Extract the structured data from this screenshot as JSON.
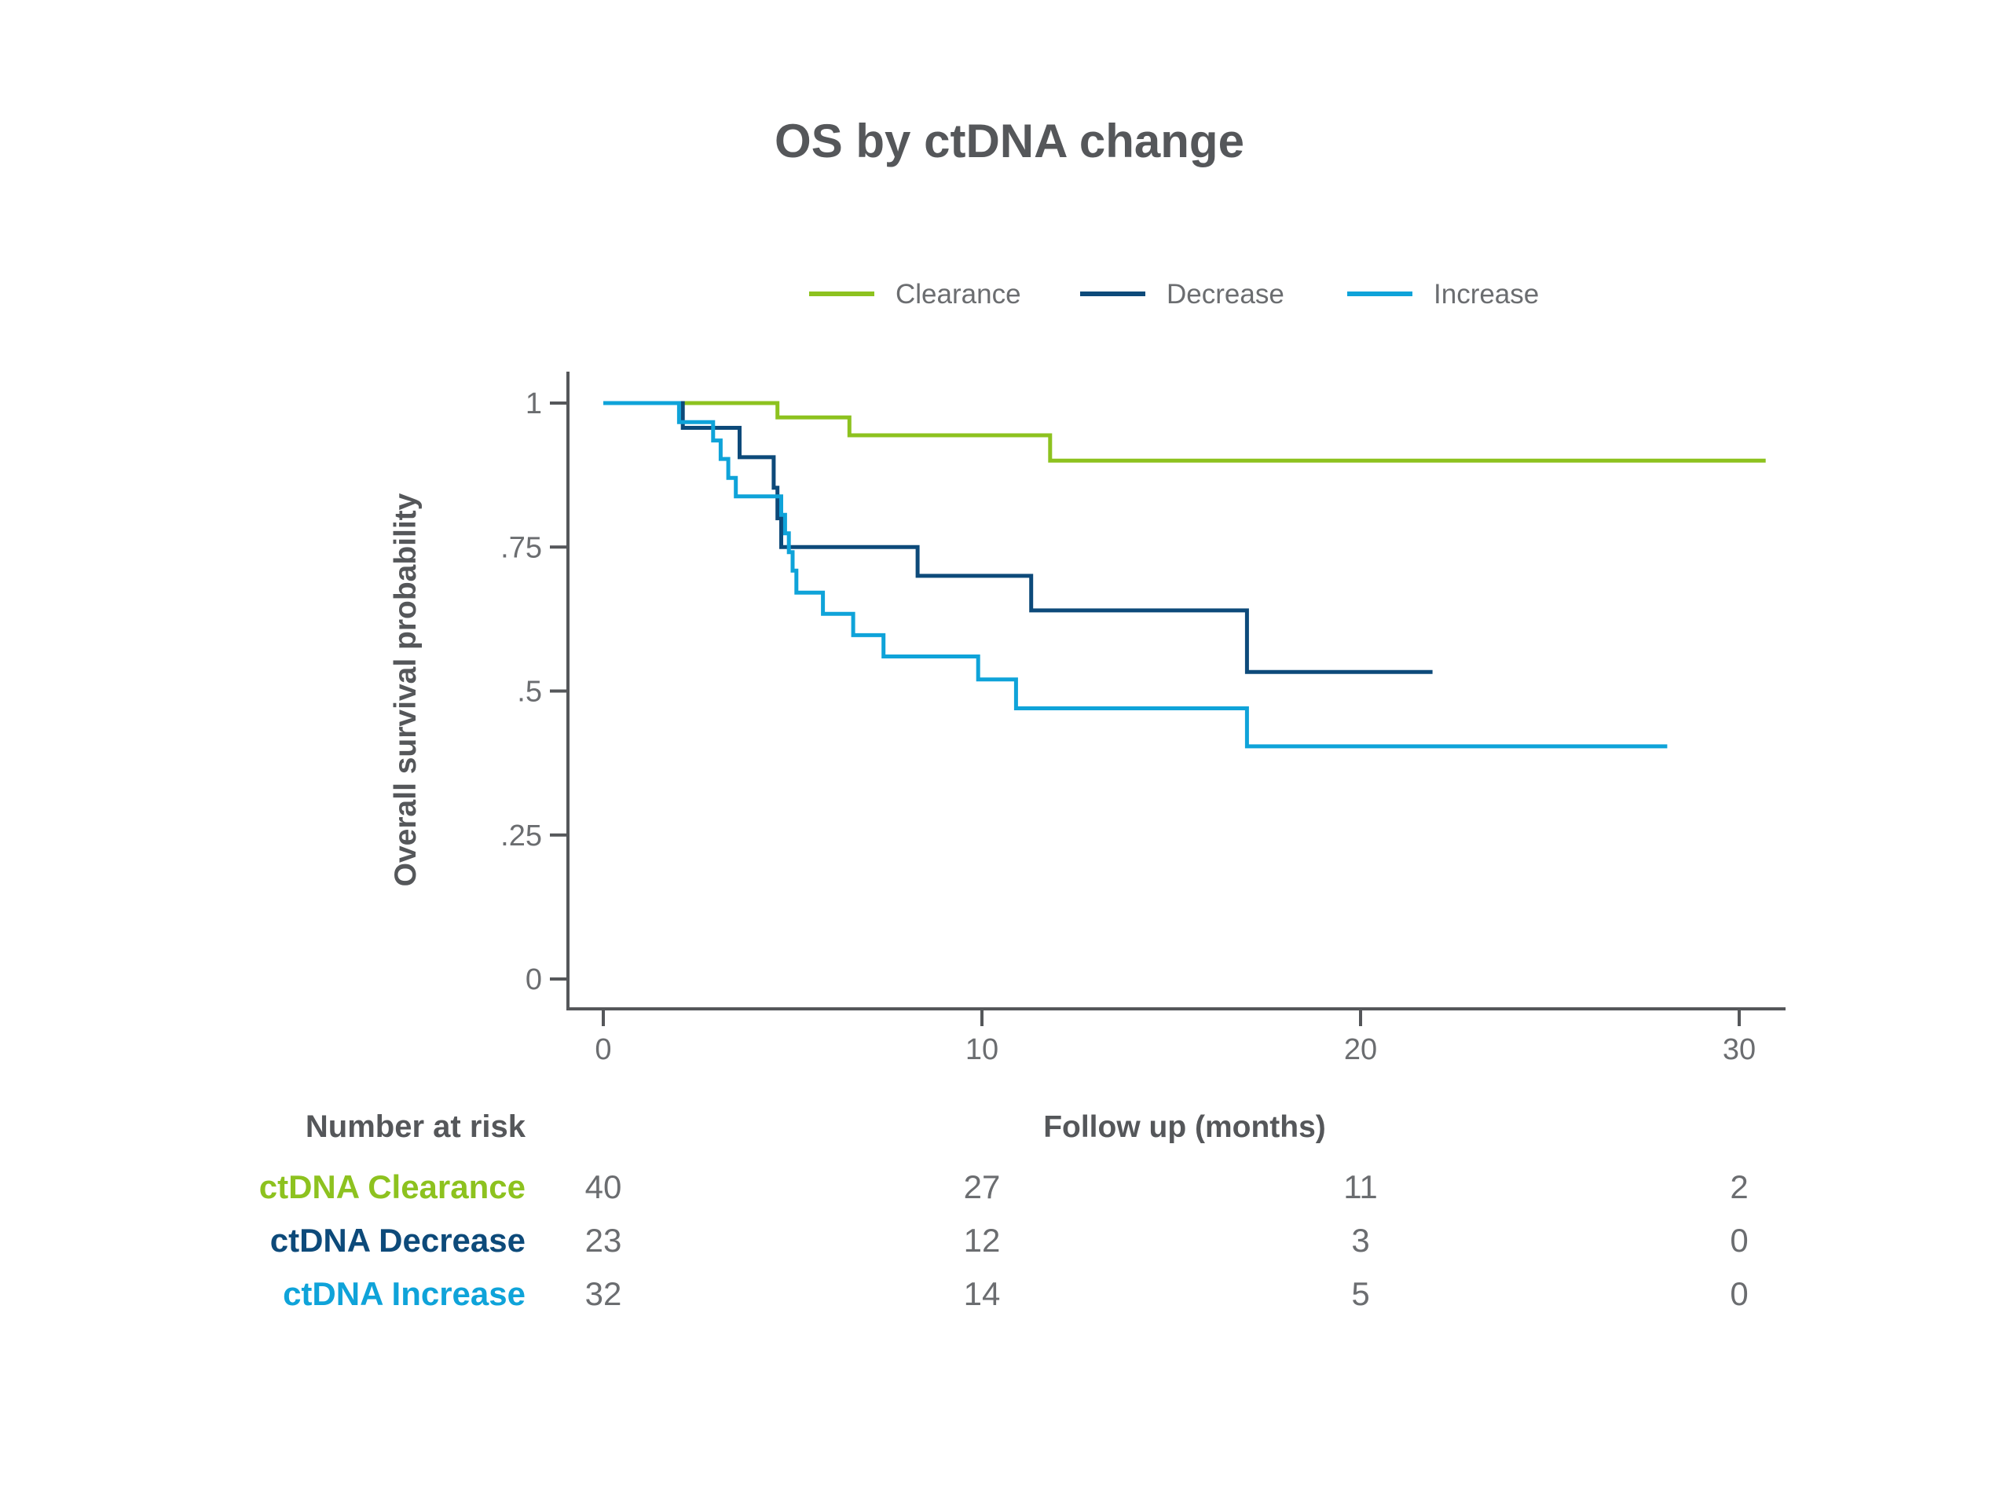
{
  "chart_data": {
    "type": "line",
    "subtype": "kaplan-meier step",
    "title": "OS by ctDNA change",
    "xlabel": "Follow up (months)",
    "ylabel": "Overall survival probability",
    "xlim": [
      -1,
      31
    ],
    "ylim": [
      -0.05,
      1.02
    ],
    "xticks": [
      0,
      10,
      20,
      30
    ],
    "xtick_labels": [
      "0",
      "10",
      "20",
      "30"
    ],
    "yticks": [
      0,
      0.25,
      0.5,
      0.75,
      1
    ],
    "ytick_labels": [
      "0",
      ".25",
      ".5",
      ".75",
      "1"
    ],
    "legend_position": "top",
    "series": [
      {
        "name": "Clearance",
        "color": "#8dc21f",
        "x": [
          0,
          4.6,
          4.6,
          6.5,
          6.5,
          11.8,
          11.8,
          30.7
        ],
        "y": [
          1,
          1,
          0.975,
          0.975,
          0.944,
          0.944,
          0.9,
          0.9
        ]
      },
      {
        "name": "Decrease",
        "color": "#0d4a7a",
        "x": [
          0,
          2.1,
          2.1,
          3.6,
          3.6,
          4.5,
          4.5,
          4.6,
          4.6,
          4.7,
          4.7,
          8.3,
          8.3,
          11.3,
          11.3,
          17,
          17,
          21.9
        ],
        "y": [
          1,
          1,
          0.957,
          0.957,
          0.906,
          0.906,
          0.853,
          0.853,
          0.8,
          0.8,
          0.75,
          0.75,
          0.7,
          0.7,
          0.64,
          0.64,
          0.533,
          0.533
        ]
      },
      {
        "name": "Increase",
        "color": "#0fa3d9",
        "x": [
          0,
          2,
          2,
          2.9,
          2.9,
          3.1,
          3.1,
          3.3,
          3.3,
          3.5,
          3.5,
          4.7,
          4.7,
          4.8,
          4.8,
          4.9,
          4.9,
          5,
          5,
          5.1,
          5.1,
          5.8,
          5.8,
          6.6,
          6.6,
          7.4,
          7.4,
          9.9,
          9.9,
          10.9,
          10.9,
          17,
          17,
          28.1
        ],
        "y": [
          1,
          1,
          0.967,
          0.967,
          0.935,
          0.935,
          0.903,
          0.903,
          0.87,
          0.87,
          0.838,
          0.838,
          0.806,
          0.806,
          0.774,
          0.774,
          0.741,
          0.741,
          0.709,
          0.709,
          0.671,
          0.671,
          0.634,
          0.634,
          0.597,
          0.597,
          0.56,
          0.56,
          0.52,
          0.52,
          0.47,
          0.47,
          0.404,
          0.404
        ]
      }
    ],
    "risk_table": {
      "header": "Number at risk",
      "times": [
        0,
        10,
        20,
        30
      ],
      "rows": [
        {
          "label": "ctDNA Clearance",
          "color": "#8dc21f",
          "values": [
            "40",
            "27",
            "11",
            "2"
          ]
        },
        {
          "label": "ctDNA Decrease",
          "color": "#0d4a7a",
          "values": [
            "23",
            "12",
            "3",
            "0"
          ]
        },
        {
          "label": "ctDNA Increase",
          "color": "#0fa3d9",
          "values": [
            "32",
            "14",
            "5",
            "0"
          ]
        }
      ]
    }
  }
}
